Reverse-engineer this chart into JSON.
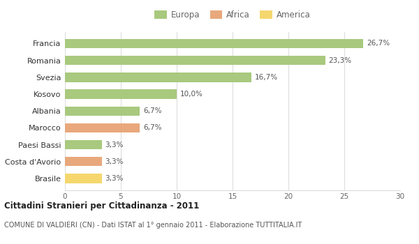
{
  "countries": [
    "Brasile",
    "Costa d'Avorio",
    "Paesi Bassi",
    "Marocco",
    "Albania",
    "Kosovo",
    "Svezia",
    "Romania",
    "Francia"
  ],
  "values": [
    3.3,
    3.3,
    3.3,
    6.7,
    6.7,
    10.0,
    16.7,
    23.3,
    26.7
  ],
  "labels": [
    "3,3%",
    "3,3%",
    "3,3%",
    "6,7%",
    "6,7%",
    "10,0%",
    "16,7%",
    "23,3%",
    "26,7%"
  ],
  "colors": [
    "#f5d76e",
    "#e8a87c",
    "#a8c97e",
    "#e8a87c",
    "#a8c97e",
    "#a8c97e",
    "#a8c97e",
    "#a8c97e",
    "#a8c97e"
  ],
  "legend_labels": [
    "Europa",
    "Africa",
    "America"
  ],
  "legend_colors": [
    "#a8c97e",
    "#e8a87c",
    "#f5d76e"
  ],
  "title": "Cittadini Stranieri per Cittadinanza - 2011",
  "subtitle": "COMUNE DI VALDIERI (CN) - Dati ISTAT al 1° gennaio 2011 - Elaborazione TUTTITALIA.IT",
  "xlim": [
    0,
    30
  ],
  "xticks": [
    0,
    5,
    10,
    15,
    20,
    25,
    30
  ],
  "background_color": "#ffffff",
  "grid_color": "#dddddd",
  "bar_height": 0.55
}
